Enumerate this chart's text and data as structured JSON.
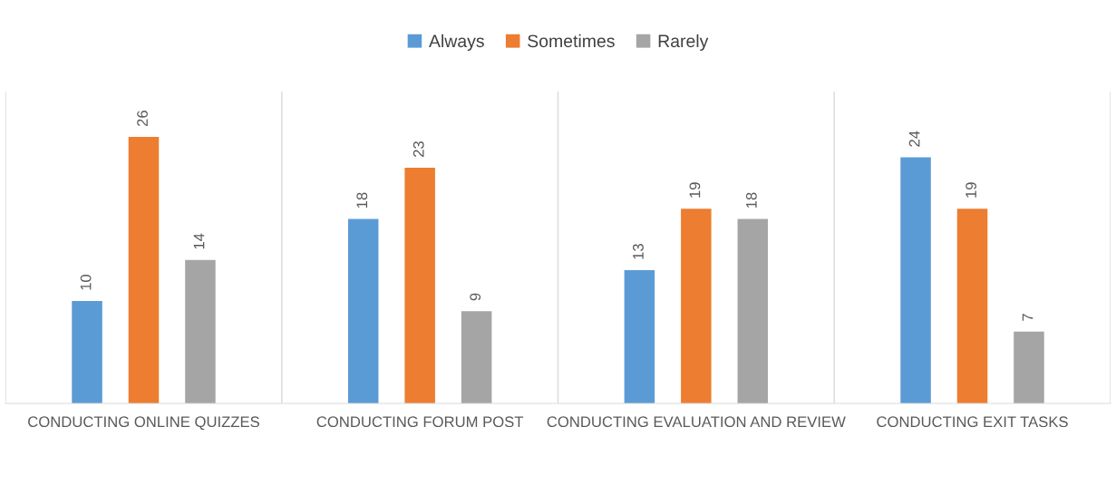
{
  "chart_data": {
    "type": "bar",
    "categories": [
      "CONDUCTING ONLINE QUIZZES",
      "CONDUCTING FORUM POST",
      "CONDUCTING EVALUATION AND REVIEW",
      "CONDUCTING EXIT TASKS"
    ],
    "series": [
      {
        "name": "Always",
        "color": "#5b9bd5",
        "values": [
          10,
          18,
          13,
          24
        ]
      },
      {
        "name": "Sometimes",
        "color": "#ed7d31",
        "values": [
          26,
          23,
          19,
          19
        ]
      },
      {
        "name": "Rarely",
        "color": "#a5a5a5",
        "values": [
          14,
          9,
          18,
          7
        ]
      }
    ],
    "data_labels": true,
    "legend": "top",
    "grid": false
  }
}
